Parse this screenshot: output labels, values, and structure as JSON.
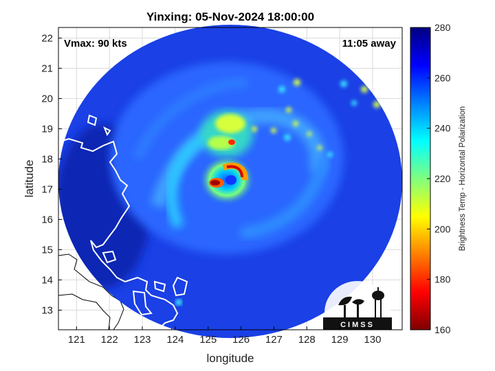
{
  "title": "Yinxing: 05-Nov-2024 18:00:00",
  "vmax_label": "Vmax: 90 kts",
  "time_away_label": "11:05 away",
  "x_axis": {
    "label": "longitude",
    "ticks": [
      "121",
      "122",
      "123",
      "124",
      "125",
      "126",
      "127",
      "128",
      "129",
      "130"
    ],
    "range": [
      120.45,
      130.9
    ]
  },
  "y_axis": {
    "label": "latitude",
    "ticks": [
      "13",
      "14",
      "15",
      "16",
      "17",
      "18",
      "19",
      "20",
      "21",
      "22"
    ],
    "range": [
      12.35,
      22.35
    ]
  },
  "colorbar": {
    "label": "Brightness Temp - Horizontal Polarization",
    "ticks": [
      "280",
      "260",
      "240",
      "220",
      "200",
      "180",
      "160"
    ],
    "range": [
      160,
      280
    ],
    "colormap": "jet",
    "color_min": "#7f0000",
    "color_max": "#00007f"
  },
  "storm_center": {
    "lon": 125.7,
    "lat": 17.25
  },
  "logo": {
    "text": "CIMSS"
  },
  "colors": {
    "coastline": "#ffffff",
    "coastline_outside": "#000000",
    "frame": "#000000",
    "grid": "#d9d9d9"
  }
}
